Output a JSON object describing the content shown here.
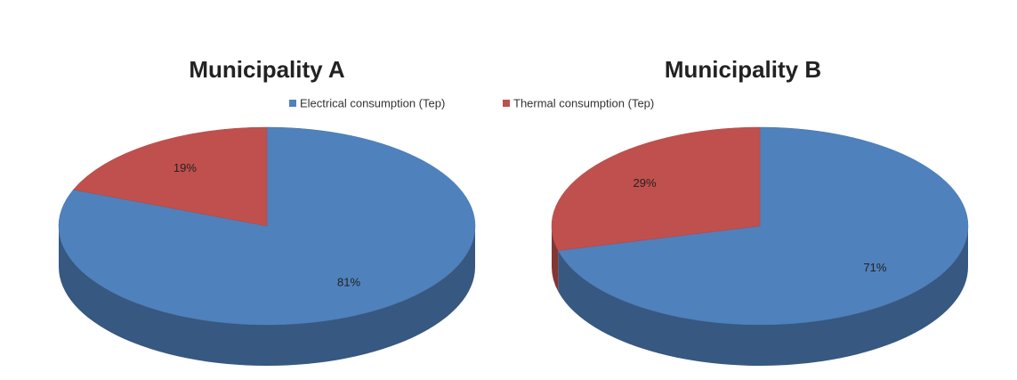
{
  "chart_data": [
    {
      "type": "pie",
      "title": "Municipality A",
      "categories": [
        "Electrical consumption (Tep)",
        "Thermal consumption (Tep)"
      ],
      "colors": [
        "#4f81bd",
        "#c0504d"
      ],
      "values": [
        81,
        19
      ],
      "value_labels": [
        "81%",
        "19%"
      ]
    },
    {
      "type": "pie",
      "title": "Municipality B",
      "values": [
        71,
        29
      ],
      "value_labels": [
        "71%",
        "29%"
      ]
    }
  ]
}
